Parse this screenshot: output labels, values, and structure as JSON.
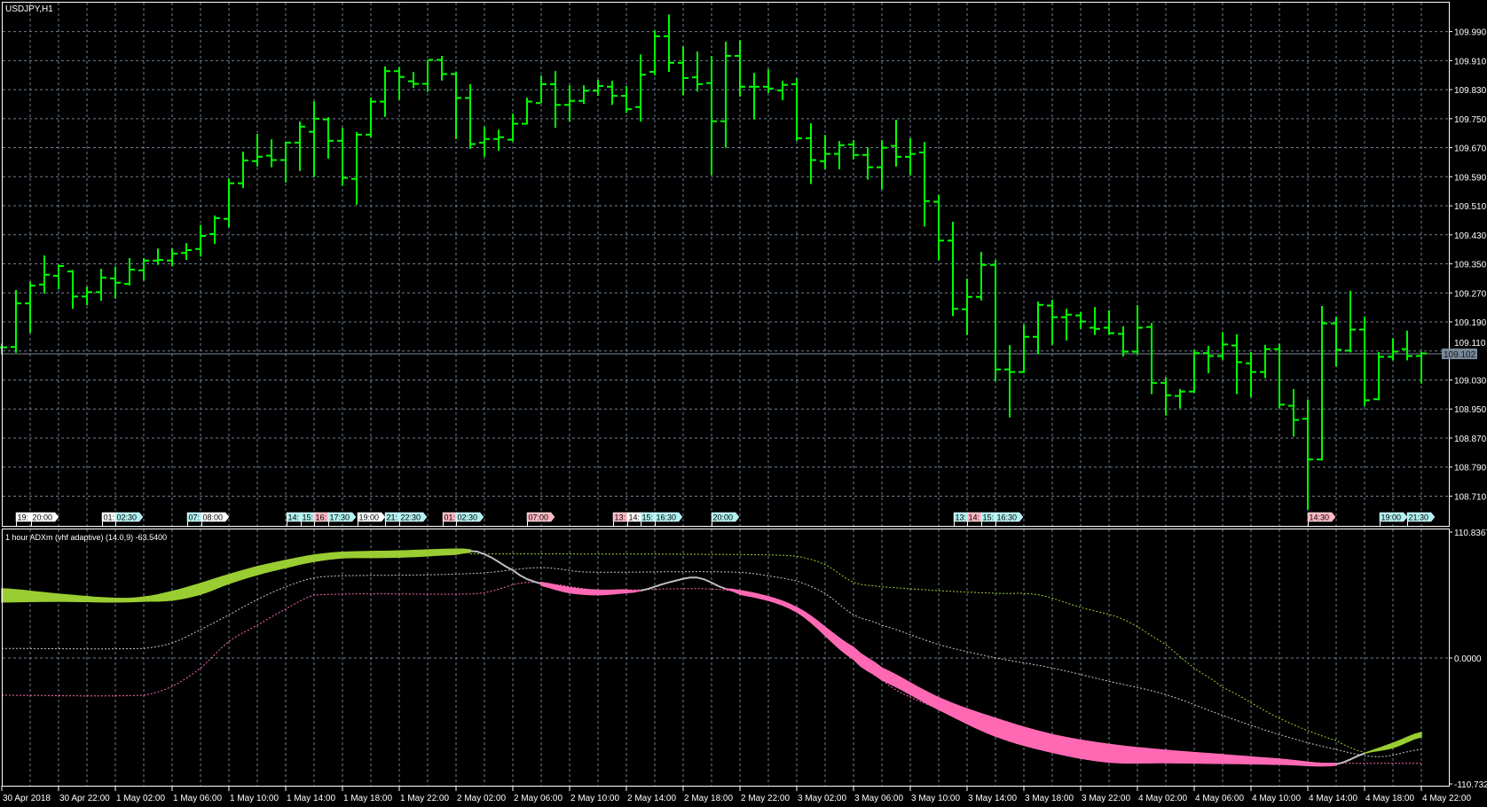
{
  "window": {
    "symbol_label": "USDJPY,H1"
  },
  "price_axis": {
    "labels": [
      "109.990",
      "109.910",
      "109.830",
      "109.750",
      "109.670",
      "109.590",
      "109.510",
      "109.430",
      "109.350",
      "109.270",
      "109.190",
      "109.110",
      "109.030",
      "108.950",
      "108.870",
      "108.790",
      "108.710"
    ],
    "current_price": "109.102"
  },
  "time_axis": {
    "labels": [
      "30 Apr 2018",
      "30 Apr 22:00",
      "1 May 02:00",
      "1 May 06:00",
      "1 May 10:00",
      "1 May 14:00",
      "1 May 18:00",
      "1 May 22:00",
      "2 May 02:00",
      "2 May 06:00",
      "2 May 10:00",
      "2 May 14:00",
      "2 May 18:00",
      "2 May 22:00",
      "3 May 02:00",
      "3 May 06:00",
      "3 May 10:00",
      "3 May 14:00",
      "3 May 18:00",
      "3 May 22:00",
      "4 May 02:00",
      "4 May 06:00",
      "4 May 10:00",
      "4 May 14:00",
      "4 May 18:00",
      "4 May 22:00"
    ]
  },
  "events": [
    {
      "text": "19:",
      "color": "white"
    },
    {
      "text": "20:00",
      "color": "white"
    },
    {
      "text": "01:",
      "color": "white"
    },
    {
      "text": "02:30",
      "color": "cyan"
    },
    {
      "text": "07:",
      "color": "cyan"
    },
    {
      "text": "08:00",
      "color": "white"
    },
    {
      "text": "14:",
      "color": "cyan"
    },
    {
      "text": "15:",
      "color": "cyan"
    },
    {
      "text": "16:",
      "color": "pink"
    },
    {
      "text": "17:30",
      "color": "cyan"
    },
    {
      "text": "19:00",
      "color": "white"
    },
    {
      "text": "21:",
      "color": "cyan"
    },
    {
      "text": "22:30",
      "color": "cyan"
    },
    {
      "text": "01:",
      "color": "pink"
    },
    {
      "text": "02:30",
      "color": "cyan"
    },
    {
      "text": "07:00",
      "color": "pink"
    },
    {
      "text": "13:",
      "color": "pink"
    },
    {
      "text": "14:",
      "color": "white"
    },
    {
      "text": "15:",
      "color": "cyan"
    },
    {
      "text": "16:30",
      "color": "cyan"
    },
    {
      "text": "20:00",
      "color": "cyan"
    },
    {
      "text": "13:",
      "color": "cyan"
    },
    {
      "text": "14:",
      "color": "pink"
    },
    {
      "text": "15:",
      "color": "cyan"
    },
    {
      "text": "16:30",
      "color": "cyan"
    },
    {
      "text": "14:30",
      "color": "pink"
    },
    {
      "text": "19:00",
      "color": "cyan"
    },
    {
      "text": "21:30",
      "color": "cyan"
    }
  ],
  "indicator": {
    "title": "1 hour ADXm (vhf adaptive) (14.0,9) -63.5400",
    "axis_labels": {
      "max": "110.8367",
      "zero": "0.0000",
      "min": "-110.7324"
    }
  },
  "colors": {
    "background": "#000000",
    "bars": "#00ff00",
    "grid": "#6e7f92",
    "axis_text": "#ffffff",
    "current_price_bg": "#778899",
    "band_up": "#9acd32",
    "band_down": "#ff69b4",
    "band_neutral": "#c0c0c0",
    "level_line": "#9acd32",
    "mid_line": "#c8c8c8",
    "low_line": "#ff69b4",
    "event_white": "#ffffff",
    "event_cyan": "#aff0f0",
    "event_pink": "#ffb6c1"
  },
  "chart_data": [
    {
      "type": "ohlc",
      "symbol": "USDJPY",
      "timeframe": "H1",
      "first_bar": "30 Apr 2018 18:00",
      "last_bar": "4 May 22:00",
      "ylim": [
        108.67,
        110.04
      ],
      "grid": true,
      "ohlc": [
        [
          109.12,
          109.13,
          109.1,
          109.12
        ],
        [
          109.121,
          109.278,
          109.105,
          109.241
        ],
        [
          109.241,
          109.301,
          109.16,
          109.29
        ],
        [
          109.293,
          109.373,
          109.268,
          109.32
        ],
        [
          109.317,
          109.348,
          109.28,
          109.344
        ],
        [
          109.329,
          109.333,
          109.226,
          109.26
        ],
        [
          109.26,
          109.287,
          109.236,
          109.272
        ],
        [
          109.272,
          109.336,
          109.248,
          109.312
        ],
        [
          109.31,
          109.342,
          109.254,
          109.298
        ],
        [
          109.295,
          109.366,
          109.29,
          109.334
        ],
        [
          109.332,
          109.366,
          109.304,
          109.359
        ],
        [
          109.359,
          109.392,
          109.347,
          109.361
        ],
        [
          109.359,
          109.392,
          109.343,
          109.378
        ],
        [
          109.38,
          109.407,
          109.361,
          109.388
        ],
        [
          109.391,
          109.457,
          109.37,
          109.427
        ],
        [
          109.432,
          109.483,
          109.405,
          109.476
        ],
        [
          109.474,
          109.585,
          109.451,
          109.572
        ],
        [
          109.572,
          109.659,
          109.559,
          109.635
        ],
        [
          109.633,
          109.708,
          109.618,
          109.645
        ],
        [
          109.648,
          109.693,
          109.616,
          109.636
        ],
        [
          109.636,
          109.686,
          109.574,
          109.684
        ],
        [
          109.684,
          109.742,
          109.606,
          109.728
        ],
        [
          109.714,
          109.798,
          109.589,
          109.75
        ],
        [
          109.748,
          109.754,
          109.64,
          109.689
        ],
        [
          109.689,
          109.725,
          109.565,
          109.587
        ],
        [
          109.584,
          109.713,
          109.513,
          109.706
        ],
        [
          109.706,
          109.808,
          109.699,
          109.797
        ],
        [
          109.797,
          109.894,
          109.755,
          109.881
        ],
        [
          109.881,
          109.892,
          109.802,
          109.865
        ],
        [
          109.853,
          109.879,
          109.835,
          109.846
        ],
        [
          109.846,
          109.912,
          109.824,
          109.912
        ],
        [
          109.912,
          109.923,
          109.855,
          109.873
        ],
        [
          109.873,
          109.88,
          109.694,
          109.807
        ],
        [
          109.807,
          109.845,
          109.667,
          109.68
        ],
        [
          109.684,
          109.728,
          109.645,
          109.694
        ],
        [
          109.694,
          109.72,
          109.662,
          109.699
        ],
        [
          109.692,
          109.764,
          109.687,
          109.736
        ],
        [
          109.736,
          109.808,
          109.734,
          109.797
        ],
        [
          109.793,
          109.869,
          109.793,
          109.845
        ],
        [
          109.845,
          109.881,
          109.725,
          109.788
        ],
        [
          109.788,
          109.842,
          109.742,
          109.799
        ],
        [
          109.799,
          109.842,
          109.791,
          109.827
        ],
        [
          109.827,
          109.857,
          109.813,
          109.84
        ],
        [
          109.838,
          109.854,
          109.788,
          109.813
        ],
        [
          109.813,
          109.84,
          109.766,
          109.776
        ],
        [
          109.782,
          109.927,
          109.742,
          109.871
        ],
        [
          109.879,
          109.993,
          109.869,
          109.977
        ],
        [
          109.977,
          110.037,
          109.879,
          109.904
        ],
        [
          109.904,
          109.949,
          109.815,
          109.862
        ],
        [
          109.864,
          109.935,
          109.825,
          109.845
        ],
        [
          109.848,
          109.923,
          109.594,
          109.743
        ],
        [
          109.743,
          109.962,
          109.67,
          109.923
        ],
        [
          109.923,
          109.966,
          109.811,
          109.838
        ],
        [
          109.838,
          109.876,
          109.748,
          109.838
        ],
        [
          109.838,
          109.886,
          109.821,
          109.833
        ],
        [
          109.828,
          109.854,
          109.801,
          109.843
        ],
        [
          109.845,
          109.862,
          109.689,
          109.696
        ],
        [
          109.696,
          109.737,
          109.57,
          109.636
        ],
        [
          109.633,
          109.705,
          109.611,
          109.653
        ],
        [
          109.653,
          109.688,
          109.611,
          109.677
        ],
        [
          109.679,
          109.691,
          109.638,
          109.65
        ],
        [
          109.65,
          109.671,
          109.582,
          109.616
        ],
        [
          109.616,
          109.691,
          109.555,
          109.67
        ],
        [
          109.675,
          109.747,
          109.618,
          109.645
        ],
        [
          109.645,
          109.696,
          109.594,
          109.653
        ],
        [
          109.657,
          109.686,
          109.453,
          109.523
        ],
        [
          109.521,
          109.54,
          109.36,
          109.414
        ],
        [
          109.414,
          109.466,
          109.206,
          109.226
        ],
        [
          109.225,
          109.309,
          109.154,
          109.259
        ],
        [
          109.259,
          109.383,
          109.249,
          109.347
        ],
        [
          109.347,
          109.361,
          109.027,
          109.059
        ],
        [
          109.059,
          109.126,
          108.927,
          109.052
        ],
        [
          109.052,
          109.183,
          109.049,
          109.149
        ],
        [
          109.149,
          109.246,
          109.101,
          109.237
        ],
        [
          109.235,
          109.251,
          109.127,
          109.203
        ],
        [
          109.203,
          109.226,
          109.139,
          109.21
        ],
        [
          109.208,
          109.217,
          109.171,
          109.191
        ],
        [
          109.174,
          109.231,
          109.154,
          109.171
        ],
        [
          109.174,
          109.222,
          109.154,
          109.159
        ],
        [
          109.157,
          109.178,
          109.095,
          109.108
        ],
        [
          109.108,
          109.236,
          109.101,
          109.174
        ],
        [
          109.176,
          109.187,
          108.991,
          109.022
        ],
        [
          109.022,
          109.037,
          108.932,
          108.988
        ],
        [
          108.986,
          109.005,
          108.952,
          108.998
        ],
        [
          108.998,
          109.113,
          108.995,
          109.104
        ],
        [
          109.104,
          109.124,
          109.049,
          109.096
        ],
        [
          109.096,
          109.162,
          109.086,
          109.128
        ],
        [
          109.125,
          109.156,
          108.991,
          109.079
        ],
        [
          109.076,
          109.107,
          108.983,
          109.052
        ],
        [
          109.052,
          109.127,
          109.035,
          109.115
        ],
        [
          109.115,
          109.13,
          108.952,
          108.962
        ],
        [
          108.959,
          109.005,
          108.874,
          108.92
        ],
        [
          108.923,
          108.976,
          108.673,
          108.811
        ],
        [
          108.811,
          109.234,
          108.808,
          109.186
        ],
        [
          109.186,
          109.205,
          109.067,
          109.113
        ],
        [
          109.111,
          109.276,
          109.106,
          109.169
        ],
        [
          109.169,
          109.205,
          108.957,
          108.974
        ],
        [
          108.977,
          109.107,
          108.974,
          109.094
        ],
        [
          109.094,
          109.145,
          109.084,
          109.108
        ],
        [
          109.115,
          109.166,
          109.084,
          109.096
        ],
        [
          109.096,
          109.108,
          109.02,
          109.103
        ]
      ]
    },
    {
      "type": "line",
      "title": "1 hour ADXm (vhf adaptive) (14.0,9) -63.5400",
      "ylim": [
        -110.7324,
        110.8367
      ],
      "band": {
        "bars": [
          0,
          4,
          8,
          10,
          12,
          14,
          16,
          18,
          20,
          22,
          24,
          28,
          32,
          33,
          34,
          36,
          37,
          38,
          40,
          42,
          44,
          45,
          47,
          49,
          51,
          52,
          56,
          60,
          62,
          66,
          70,
          74,
          78,
          82,
          86,
          90,
          94,
          96,
          98,
          100
        ],
        "upper": [
          60.9,
          56.2,
          52.5,
          53.6,
          58.5,
          65.6,
          73.4,
          80.4,
          85.9,
          90.6,
          93.1,
          94.2,
          95.8,
          95.2,
          91.3,
          77.3,
          69.5,
          66.6,
          61.9,
          59.6,
          59.9,
          59.3,
          66.6,
          70.8,
          60.9,
          59.3,
          44.5,
          9.4,
          -8.8,
          -34.9,
          -53.1,
          -67.4,
          -76.0,
          -81.2,
          -85.1,
          -89.0,
          -92.7,
          -83.8,
          -75.0,
          -65.6
        ],
        "lower": [
          49.4,
          50.0,
          49.4,
          50.0,
          51.0,
          56.2,
          65.6,
          73.4,
          79.6,
          85.1,
          88.2,
          88.8,
          91.3,
          93.1,
          91.3,
          77.3,
          69.5,
          64.0,
          57.5,
          55.7,
          57.5,
          59.3,
          66.6,
          70.8,
          60.9,
          56.2,
          40.6,
          -1.0,
          -19.3,
          -45.3,
          -68.7,
          -83.0,
          -91.6,
          -92.1,
          -92.7,
          -93.5,
          -94.3,
          -83.8,
          -78.9,
          -69.3
        ],
        "state": [
          "up",
          "up",
          "up",
          "up",
          "up",
          "up",
          "up",
          "up",
          "up",
          "up",
          "up",
          "up",
          "up",
          "flat",
          "flat",
          "flat",
          "flat",
          "down",
          "down",
          "down",
          "down",
          "flat",
          "flat",
          "flat",
          "down",
          "down",
          "down",
          "down",
          "down",
          "down",
          "down",
          "down",
          "down",
          "down",
          "down",
          "down",
          "flat",
          "up",
          "up",
          "up"
        ]
      },
      "level_line": {
        "bars": [
          33,
          40,
          52,
          56,
          58,
          60,
          62,
          66,
          70,
          73,
          76,
          79,
          82,
          84,
          86,
          90,
          94,
          96
        ],
        "values": [
          91.6,
          91.6,
          91.1,
          89.6,
          82.2,
          66.6,
          62.7,
          59.3,
          57.0,
          55.7,
          44.5,
          34.1,
          11.9,
          -8.8,
          -25.8,
          -53.1,
          -72.6,
          -83.0
        ]
      },
      "mid_line": {
        "bars": [
          0,
          10,
          12,
          14,
          16,
          18,
          20,
          22,
          24,
          30,
          34,
          38,
          41,
          52,
          56,
          58,
          60,
          62,
          66,
          70,
          74,
          78,
          82,
          86,
          90,
          94,
          97,
          100
        ],
        "values": [
          8.4,
          8.4,
          13.3,
          25.0,
          38.0,
          51.5,
          62.7,
          70.5,
          72.4,
          73.2,
          75.0,
          79.6,
          75.7,
          75.5,
          67.9,
          56.8,
          38.0,
          28.9,
          11.9,
          0.2,
          -8.8,
          -20.5,
          -32.2,
          -50.5,
          -67.4,
          -80.4,
          -86.9,
          -80.4
        ]
      },
      "low_line": {
        "bars": [
          0,
          10,
          12,
          14,
          16,
          18,
          20,
          22,
          32,
          34,
          37,
          42,
          51,
          56,
          62,
          66,
          70,
          74,
          78,
          82,
          86,
          94,
          100
        ],
        "values": [
          -32.8,
          -32.8,
          -25.0,
          -8.8,
          14.6,
          28.9,
          43.2,
          55.4,
          56.2,
          57.5,
          66.6,
          59.9,
          59.9,
          40.6,
          -19.3,
          -45.3,
          -68.7,
          -83.0,
          -91.6,
          -92.1,
          -92.7,
          -92.7,
          -92.7
        ]
      }
    }
  ]
}
